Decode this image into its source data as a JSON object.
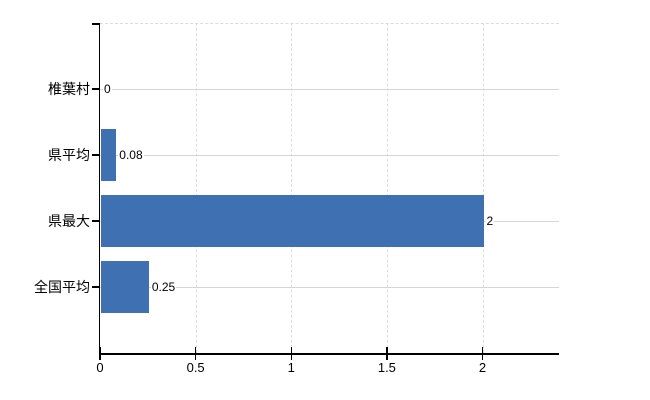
{
  "chart_data": {
    "type": "bar",
    "orientation": "horizontal",
    "title": "",
    "categories": [
      "椎葉村",
      "県平均",
      "県最大",
      "全国平均"
    ],
    "values": [
      0,
      0.08,
      2,
      0.25
    ],
    "value_labels": [
      "0",
      "0.08",
      "2",
      "0.25"
    ],
    "x_tick_values": [
      0,
      0.5,
      1,
      1.5,
      2
    ],
    "x_tick_labels": [
      "0",
      "0.5",
      "1",
      "1.5",
      "2"
    ],
    "xlim": [
      0,
      2.4
    ],
    "grid": "on",
    "legend": "none",
    "bar_color": "#3e70b2"
  },
  "colors": {
    "background": "#ffffff",
    "bar": "#3e70b2",
    "axis": "#000000",
    "gridline_solid": "#d3d8d0",
    "gridline_dashed": "#dcdcdc",
    "text": "#000000"
  }
}
